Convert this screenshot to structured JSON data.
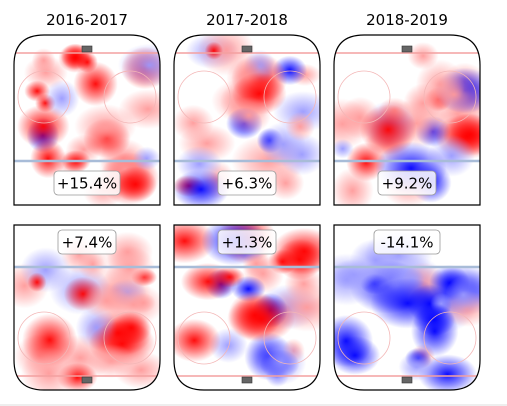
{
  "chart_data": {
    "type": "heatmap",
    "columns": [
      "2016-2017",
      "2017-2018",
      "2018-2019"
    ],
    "panels": [
      {
        "row": 0,
        "col": 0,
        "label": "+15.4%",
        "value": 15.4,
        "rink_half": "offensive-zone-top-net"
      },
      {
        "row": 0,
        "col": 1,
        "label": "+6.3%",
        "value": 6.3,
        "rink_half": "offensive-zone-top-net"
      },
      {
        "row": 0,
        "col": 2,
        "label": "+9.2%",
        "value": 9.2,
        "rink_half": "offensive-zone-top-net"
      },
      {
        "row": 1,
        "col": 0,
        "label": "+7.4%",
        "value": 7.4,
        "rink_half": "defensive-zone-bottom-net"
      },
      {
        "row": 1,
        "col": 1,
        "label": "+1.3%",
        "value": 1.3,
        "rink_half": "defensive-zone-bottom-net"
      },
      {
        "row": 1,
        "col": 2,
        "label": "-14.1%",
        "value": -14.1,
        "rink_half": "defensive-zone-bottom-net"
      }
    ],
    "colormap": {
      "positive": "#ff0000",
      "negative": "#0000ff",
      "neutral": "#ffffff"
    },
    "rink_colors": {
      "goal_line": "#f4a0a0",
      "blue_line": "#a8bcd8",
      "net": "#666666",
      "boards": "#000000"
    }
  }
}
